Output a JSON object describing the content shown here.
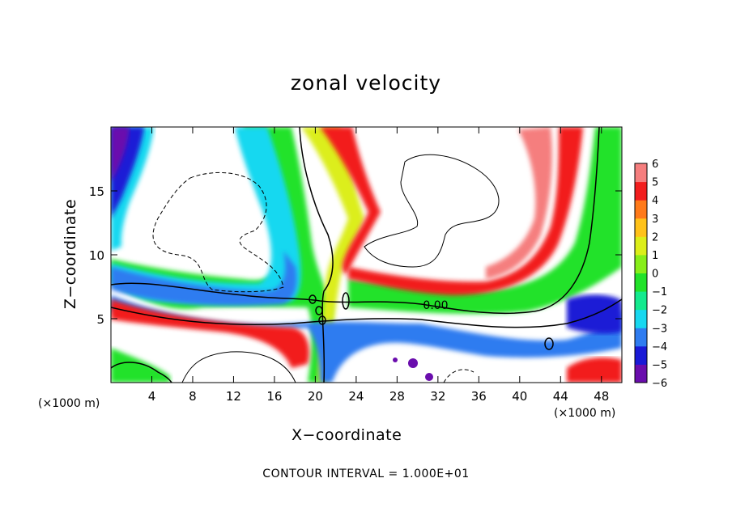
{
  "chart_data": {
    "type": "heatmap",
    "title": "zonal velocity",
    "xlabel": "X−coordinate",
    "ylabel": "Z−coordinate",
    "x_unit_note": "(×1000 m)",
    "xlim": [
      0,
      50
    ],
    "ylim": [
      0,
      20
    ],
    "xticks": [
      4,
      8,
      12,
      16,
      20,
      24,
      28,
      32,
      36,
      40,
      44,
      48
    ],
    "yticks": [
      5,
      10,
      15
    ],
    "contour_label": "0.00",
    "footer": "CONTOUR INTERVAL = 1.000E+01",
    "colorbar": {
      "min": -6,
      "max": 6,
      "ticks": [
        "6",
        "5",
        "4",
        "3",
        "2",
        "1",
        "0",
        "−1",
        "−2",
        "−3",
        "−4",
        "−5",
        "−6"
      ],
      "colors": [
        "#6a0dad",
        "#1a1ad6",
        "#2f7cf0",
        "#18d8f0",
        "#14ea8e",
        "#22e22a",
        "#88ee1a",
        "#dcee1a",
        "#ffc21a",
        "#ff7a1a",
        "#f21e1e",
        "#f57e7e"
      ]
    },
    "legend": "right",
    "grid": false
  }
}
